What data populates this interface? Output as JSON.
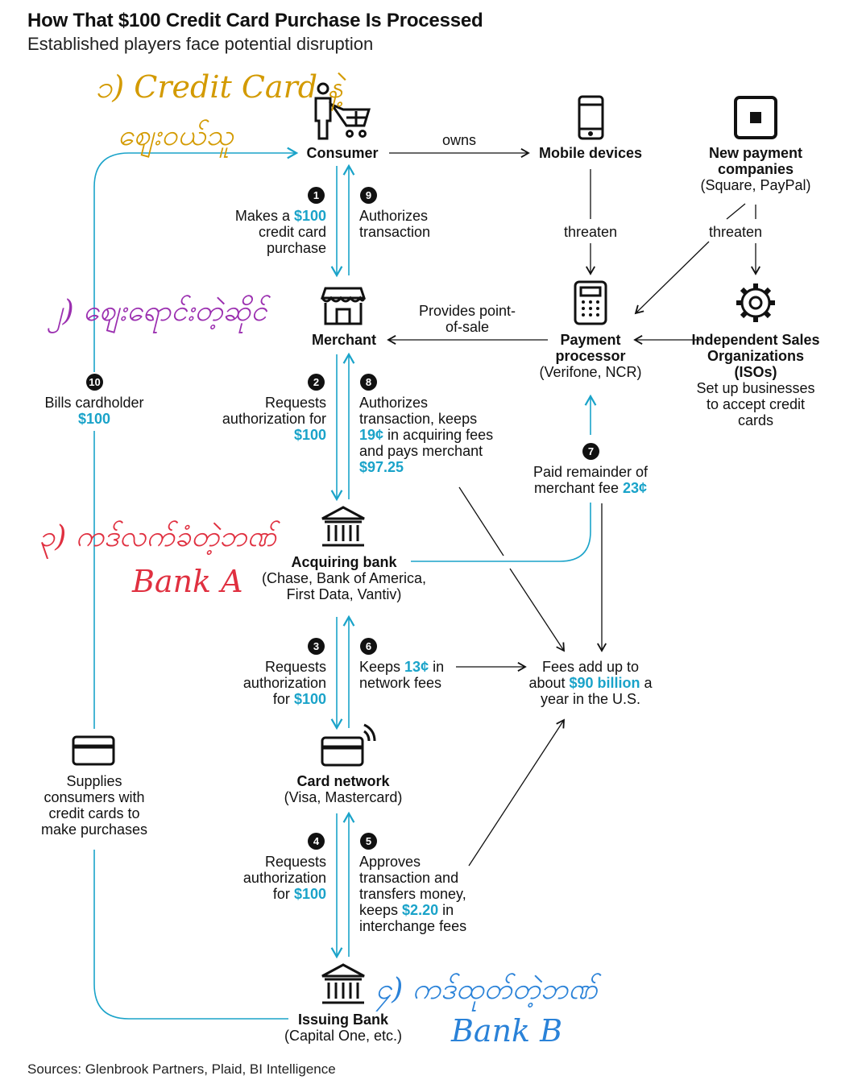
{
  "header": {
    "title": "How That $100 Credit Card Purchase Is Processed",
    "subtitle": "Established players face potential disruption"
  },
  "nodes": {
    "consumer": "Consumer",
    "mobile": "Mobile devices",
    "newpay_title": "New payment companies",
    "newpay_sub": "(Square, PayPal)",
    "merchant": "Merchant",
    "processor_title": "Payment processor",
    "processor_sub": "(Verifone, NCR)",
    "iso_title": "Independent Sales Organizations (ISOs)",
    "iso_sub": "Set up businesses to accept credit cards",
    "acquiring_title": "Acquiring bank",
    "acquiring_sub": "(Chase, Bank of America, First Data, Vantiv)",
    "network_title": "Card network",
    "network_sub": "(Visa, Mastercard)",
    "issuing_title": "Issuing Bank",
    "issuing_sub": "(Capital One, etc.)",
    "supplies": "Supplies consumers with credit cards to make purchases"
  },
  "steps": {
    "s1": {
      "num": "1",
      "pre": "Makes a ",
      "amt": "$100",
      "post": "credit card purchase"
    },
    "s2": {
      "num": "2",
      "pre": "Requests authorization for",
      "amt": "$100"
    },
    "s3": {
      "num": "3",
      "pre": "Requests authorization for",
      "amt": "$100"
    },
    "s4": {
      "num": "4",
      "pre": "Requests authorization for",
      "amt": "$100"
    },
    "s5": {
      "num": "5",
      "pre": "Approves transaction and transfers money, keeps ",
      "amt": "$2.20",
      "post": " in interchange fees"
    },
    "s6": {
      "num": "6",
      "pre": "Keeps ",
      "amt": "13¢",
      "post": " in network fees"
    },
    "s7": {
      "num": "7",
      "pre": "Paid remainder of merchant fee ",
      "amt": "23¢"
    },
    "s8": {
      "num": "8",
      "pre": "Authorizes transaction, keeps ",
      "amt": "19¢",
      "mid": " in acquiring fees and pays merchant ",
      "amt2": "$97.25"
    },
    "s9": {
      "num": "9",
      "pre": "Authorizes transaction"
    },
    "s10": {
      "num": "10",
      "pre": "Bills cardholder",
      "amt": "$100"
    }
  },
  "edges": {
    "owns": "owns",
    "threaten1": "threaten",
    "threaten2": "threaten",
    "pos": "Provides point-of-sale"
  },
  "fees": {
    "pre": "Fees add up to about ",
    "amt": "$90 billion",
    "post": " a year in the U.S."
  },
  "annotations": {
    "a1_line1": "၁) Credit Card နဲ့",
    "a1_line2": "ဈေးဝယ်သူ",
    "a2": "၂) ဈေးရောင်းတဲ့ဆိုင်",
    "a3": "၃) ကဒ်လက်ခံတဲ့ဘဏ်",
    "a3_bank": "Bank A",
    "a4": "၄) ကဒ်ထုတ်တဲ့ဘဏ်",
    "a4_bank": "Bank B"
  },
  "footer": {
    "source": "Sources: Glenbrook Partners, Plaid, BI Intelligence"
  },
  "colors": {
    "accent": "#1aa3c9",
    "ink": "#111111",
    "annot1": "#d39a00",
    "annot2": "#9b2fb0",
    "annot3": "#e03040",
    "annot4": "#2a82d8"
  }
}
